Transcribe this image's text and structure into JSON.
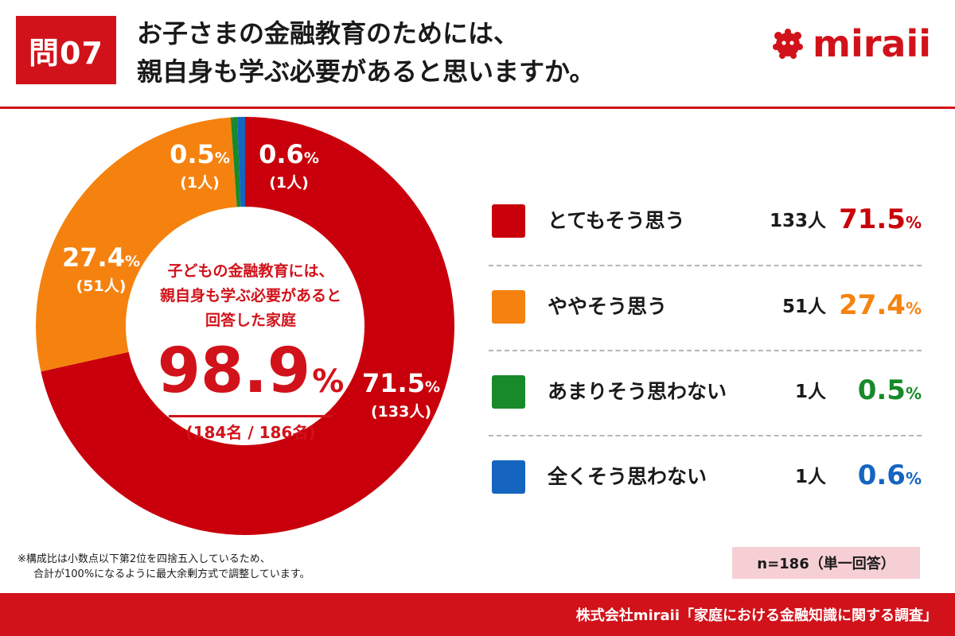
{
  "header": {
    "badge": "問07",
    "title_line1": "お子さまの金融教育のためには、",
    "title_line2": "親自身も学ぶ必要があると思いますか。",
    "logo_text": "miraii"
  },
  "colors": {
    "accent": "#d1121a",
    "series": [
      "#c9000b",
      "#f5820f",
      "#178a2a",
      "#1565c0"
    ]
  },
  "chart_data": {
    "type": "pie",
    "donut": true,
    "categories": [
      "とてもそう思う",
      "ややそう思う",
      "あまりそう思わない",
      "全くそう思わない"
    ],
    "counts": [
      133,
      51,
      1,
      1
    ],
    "count_labels": [
      "133人",
      "51人",
      "1人",
      "1人"
    ],
    "percent_labels": [
      "71.5",
      "27.4",
      "0.5",
      "0.6"
    ],
    "slice_count_labels": [
      "(133人)",
      "(51人)",
      "(1人)",
      "(1人)"
    ],
    "values": [
      71.5,
      27.4,
      0.5,
      0.6
    ],
    "unit": "%",
    "direction": "clockwise from top",
    "slice_order": [
      0,
      1,
      2,
      3
    ],
    "center": {
      "label_line1": "子どもの金融教育には、",
      "label_line2": "親自身も学ぶ必要があると",
      "label_line3": "回答した家庭",
      "value": "98.9",
      "unit": "%",
      "count": "(184名 / 186名)"
    }
  },
  "note": {
    "line1": "※構成比は小数点以下第2位を四捨五入しているため、",
    "line2": "合計が100%になるように最大余剰方式で調整しています。"
  },
  "sample": "n=186（単一回答）",
  "footer": "株式会社miraii「家庭における金融知識に関する調査」"
}
